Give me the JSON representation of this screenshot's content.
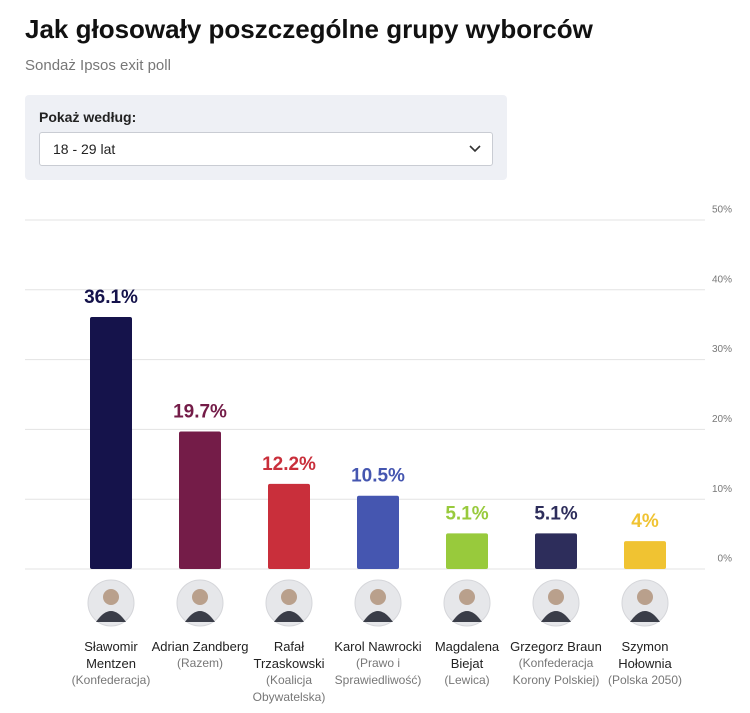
{
  "header": {
    "title": "Jak głosowały poszczególne grupy wyborców",
    "subtitle": "Sondaż Ipsos exit poll"
  },
  "filter": {
    "label": "Pokaż według:",
    "selected": "18 - 29 lat"
  },
  "chart_data": {
    "type": "bar",
    "categories": [
      "Sławomir Mentzen",
      "Adrian Zandberg",
      "Rafał Trzaskowski",
      "Karol Nawrocki",
      "Magdalena Biejat",
      "Grzegorz Braun",
      "Szymon Hołownia"
    ],
    "parties": [
      "(Konfederacja)",
      "(Razem)",
      "(Koalicja Obywatelska)",
      "(Prawo i Sprawiedliwość)",
      "(Lewica)",
      "(Konfederacja Korony Polskiej)",
      "(Polska 2050)"
    ],
    "values": [
      36.1,
      19.7,
      12.2,
      10.5,
      5.1,
      5.1,
      4
    ],
    "value_labels": [
      "36.1%",
      "19.7%",
      "12.2%",
      "10.5%",
      "5.1%",
      "5.1%",
      "4%"
    ],
    "colors": [
      "#15134b",
      "#741c48",
      "#c92f3b",
      "#4556b0",
      "#98ca3c",
      "#2d2d5b",
      "#f0c332"
    ],
    "ylim": [
      0,
      50
    ],
    "yticks": [
      {
        "value": 0,
        "label": "0%"
      },
      {
        "value": 10,
        "label": "10%"
      },
      {
        "value": 20,
        "label": "20%"
      },
      {
        "value": 30,
        "label": "30%"
      },
      {
        "value": 40,
        "label": "40%"
      },
      {
        "value": 50,
        "label": "50%"
      }
    ],
    "grid": true
  }
}
